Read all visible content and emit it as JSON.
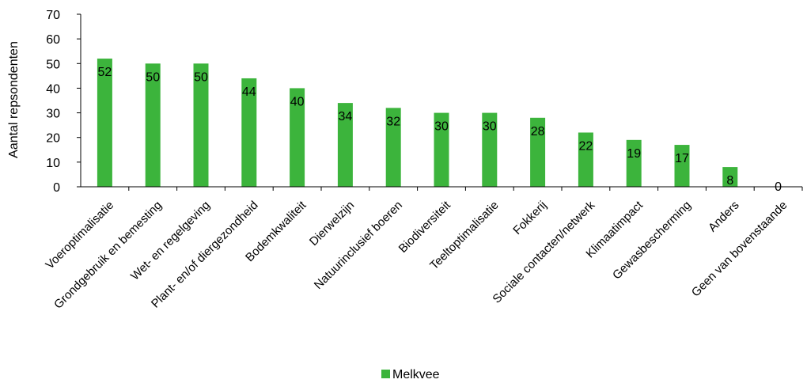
{
  "chart_data": {
    "type": "bar",
    "ylabel": "Aantal repsondenten",
    "ylim": [
      0,
      70
    ],
    "yticks": [
      0,
      10,
      20,
      30,
      40,
      50,
      60,
      70
    ],
    "grid": false,
    "legend_position": "bottom",
    "categories": [
      "Voeroptimalisatie",
      "Grondgebruik en bemesting",
      "Wet- en regelgeving",
      "Plant- en/of diergezondheid",
      "Bodemkwaliteit",
      "Dierwelzijn",
      "Natuurinclusief boeren",
      "Biodiversiteit",
      "Teeltoptimalisatie",
      "Fokkerij",
      "Sociale contacten/netwerk",
      "Klimaatimpact",
      "Gewasbescherming",
      "Anders",
      "Geen van bovenstaande"
    ],
    "series": [
      {
        "name": "Melkvee",
        "color": "#3cb43c",
        "values": [
          52,
          50,
          50,
          44,
          40,
          34,
          32,
          30,
          30,
          28,
          22,
          19,
          17,
          8,
          0
        ]
      }
    ]
  }
}
